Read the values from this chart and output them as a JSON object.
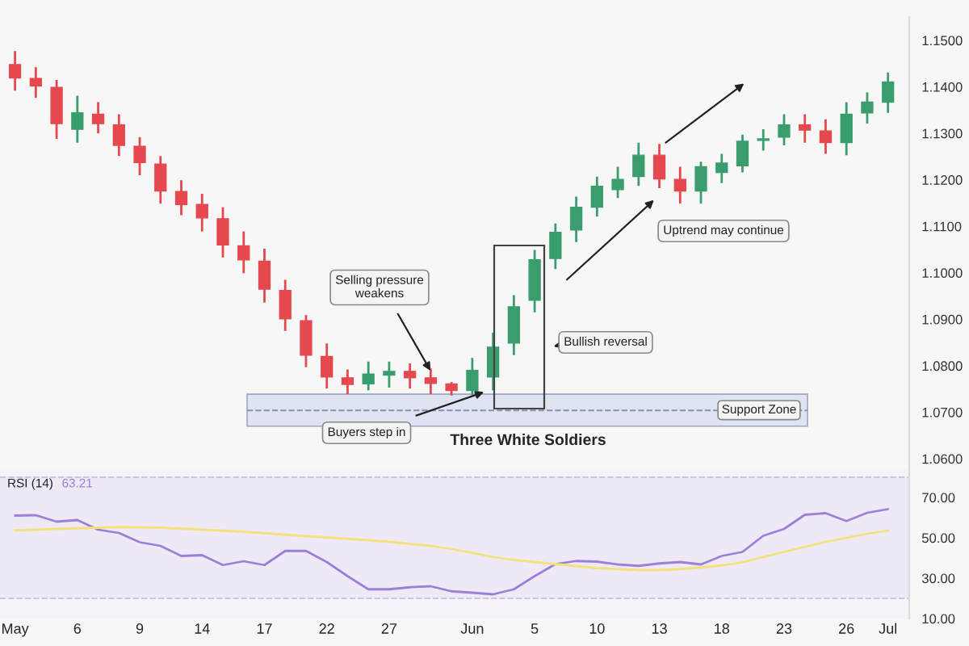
{
  "chart_data": [
    {
      "type": "candlestick",
      "categories": [
        null,
        null,
        null,
        null,
        null,
        null,
        null,
        null,
        null,
        null,
        null,
        null,
        null,
        null,
        null,
        null,
        null,
        null,
        null,
        null,
        null,
        null,
        null,
        null,
        null,
        null,
        null,
        null,
        null,
        null,
        null,
        null,
        null,
        null,
        null,
        null,
        null,
        null,
        null,
        null,
        null,
        null,
        null
      ],
      "ohlc": [
        [
          1.1448,
          1.1477,
          1.1392,
          1.1419
        ],
        [
          1.1418,
          1.1442,
          1.1376,
          1.1402
        ],
        [
          1.1399,
          1.1415,
          1.1288,
          1.1321
        ],
        [
          1.1309,
          1.1381,
          1.128,
          1.1344
        ],
        [
          1.1341,
          1.1367,
          1.13,
          1.1321
        ],
        [
          1.1318,
          1.1341,
          1.1251,
          1.1274
        ],
        [
          1.1272,
          1.1292,
          1.121,
          1.1237
        ],
        [
          1.1234,
          1.1251,
          1.1149,
          1.1176
        ],
        [
          1.1175,
          1.1199,
          1.1124,
          1.1147
        ],
        [
          1.1147,
          1.117,
          1.1089,
          1.1118
        ],
        [
          1.1116,
          1.1141,
          1.1033,
          1.106
        ],
        [
          1.1058,
          1.1089,
          1.0999,
          1.1028
        ],
        [
          1.1025,
          1.1052,
          1.0936,
          1.0965
        ],
        [
          1.0962,
          1.0985,
          1.0875,
          1.0901
        ],
        [
          1.0897,
          1.0909,
          1.0797,
          1.0823
        ],
        [
          1.082,
          1.0848,
          1.0751,
          1.0776
        ],
        [
          1.0774,
          1.0792,
          1.0739,
          1.076
        ],
        [
          1.0761,
          1.0809,
          1.0747,
          1.0782
        ],
        [
          1.078,
          1.0809,
          1.0753,
          1.0788
        ],
        [
          1.0788,
          1.0805,
          1.0751,
          1.0774
        ],
        [
          1.0774,
          1.0794,
          1.0739,
          1.0762
        ],
        [
          1.0761,
          1.0765,
          1.0736,
          1.0747
        ],
        [
          1.0747,
          1.0817,
          1.0736,
          1.079
        ],
        [
          1.0776,
          1.0871,
          1.0747,
          1.084
        ],
        [
          1.0849,
          1.0952,
          1.0823,
          1.0927
        ],
        [
          1.0941,
          1.1049,
          1.0915,
          1.1028
        ],
        [
          1.1031,
          1.1106,
          1.1008,
          1.1087
        ],
        [
          1.1092,
          1.1164,
          1.1066,
          1.1141
        ],
        [
          1.1141,
          1.1207,
          1.1121,
          1.1186
        ],
        [
          1.1179,
          1.1228,
          1.1161,
          1.1201
        ],
        [
          1.1207,
          1.128,
          1.1187,
          1.1253
        ],
        [
          1.1253,
          1.1277,
          1.1182,
          1.1202
        ],
        [
          1.1201,
          1.1228,
          1.1149,
          1.1176
        ],
        [
          1.1176,
          1.1239,
          1.1149,
          1.1228
        ],
        [
          1.1216,
          1.1256,
          1.1193,
          1.1236
        ],
        [
          1.123,
          1.1297,
          1.1216,
          1.1283
        ],
        [
          1.1285,
          1.1309,
          1.1263,
          1.1288
        ],
        [
          1.1292,
          1.1341,
          1.1274,
          1.1318
        ],
        [
          1.1318,
          1.1341,
          1.128,
          1.1307
        ],
        [
          1.1305,
          1.133,
          1.1256,
          1.128
        ],
        [
          1.128,
          1.1367,
          1.1253,
          1.1341
        ],
        [
          1.1344,
          1.1388,
          1.1321,
          1.1367
        ],
        [
          1.1367,
          1.1431,
          1.1344,
          1.141
        ]
      ],
      "colors": [
        "#e5484d",
        "#e5484d",
        "#e5484d",
        "#3a9d6e",
        "#e5484d",
        "#e5484d",
        "#e5484d",
        "#e5484d",
        "#e5484d",
        "#e5484d",
        "#e5484d",
        "#e5484d",
        "#e5484d",
        "#e5484d",
        "#e5484d",
        "#e5484d",
        "#e5484d",
        "#3a9d6e",
        "#3a9d6e",
        "#e5484d",
        "#e5484d",
        "#e5484d",
        "#3a9d6e",
        "#3a9d6e",
        "#3a9d6e",
        "#3a9d6e",
        "#3a9d6e",
        "#3a9d6e",
        "#3a9d6e",
        "#3a9d6e",
        "#3a9d6e",
        "#e5484d",
        "#e5484d",
        "#3a9d6e",
        "#3a9d6e",
        "#3a9d6e",
        "#3a9d6e",
        "#3a9d6e",
        "#e5484d",
        "#e5484d",
        "#3a9d6e",
        "#3a9d6e",
        "#3a9d6e"
      ],
      "ylim": [
        1.058,
        1.155
      ],
      "yticks": [
        {
          "value": 1.06,
          "label": "1.0600"
        },
        {
          "value": 1.07,
          "label": "1.0700"
        },
        {
          "value": 1.08,
          "label": "1.0800"
        },
        {
          "value": 1.09,
          "label": "1.0900"
        },
        {
          "value": 1.1,
          "label": "1.1000"
        },
        {
          "value": 1.11,
          "label": "1.1100"
        },
        {
          "value": 1.12,
          "label": "1.1200"
        },
        {
          "value": 1.13,
          "label": "1.1300"
        },
        {
          "value": 1.14,
          "label": "1.1400"
        },
        {
          "value": 1.15,
          "label": "1.1500"
        }
      ],
      "tick_labels": "y",
      "bands": [
        {
          "axis": "y",
          "from": 1.067,
          "to": 1.0739,
          "label": "Support Zone",
          "color": "#dfe3f2"
        }
      ],
      "ref_lines": [
        {
          "axis": "y",
          "value": 1.0704,
          "color": "#8a90b0",
          "line_style": "dashed"
        }
      ],
      "annotations": [
        "Selling pressure\nweakens",
        {
          "text": "Buyers step in",
          "y": 1.0745
        },
        "Bullish reversal",
        "Uptrend may continue",
        "Three White Soldiers"
      ]
    },
    {
      "type": "line",
      "categories": [
        "May",
        null,
        null,
        "6",
        null,
        null,
        "9",
        null,
        null,
        "14",
        null,
        null,
        "17",
        null,
        null,
        "22",
        null,
        null,
        "27",
        null,
        null,
        null,
        "Jun",
        null,
        null,
        "5",
        null,
        null,
        "10",
        null,
        null,
        "13",
        null,
        null,
        "18",
        null,
        null,
        "23",
        null,
        null,
        "26",
        null,
        "Jul"
      ],
      "series": [
        {
          "name": "RSI (14)",
          "color": "#9b80d8",
          "values": [
            61,
            61.2,
            58,
            58.8,
            54,
            52.4,
            47.8,
            46,
            41,
            41.4,
            36.5,
            38.4,
            36.5,
            43.5,
            43.5,
            38,
            31,
            24.5,
            24.5,
            25.5,
            26,
            23.5,
            22.8,
            22,
            24.5,
            31,
            37,
            38.5,
            38.2,
            36.8,
            36.1,
            37.3,
            38,
            36.8,
            41,
            43,
            51,
            54.4,
            61.4,
            62.2,
            58.3,
            62.4,
            64.2
          ]
        },
        {
          "color": "#f3e27c",
          "values": [
            53.7,
            54,
            54.4,
            54.7,
            55,
            55.3,
            55.2,
            55,
            54.5,
            54,
            53.5,
            53,
            52.3,
            51.5,
            50.8,
            50.2,
            49.5,
            48.8,
            48,
            47,
            46,
            44.5,
            42.5,
            40.5,
            39,
            38,
            37,
            36,
            35,
            34.5,
            34,
            34,
            34.5,
            35.3,
            36.3,
            37.8,
            40.5,
            43,
            45.5,
            48,
            50,
            52,
            53.6
          ]
        }
      ],
      "ylim": [
        10,
        84
      ],
      "yticks": [
        {
          "value": 10,
          "label": "10.00"
        },
        {
          "value": 30,
          "label": "30.00"
        },
        {
          "value": 50,
          "label": "50.00"
        },
        {
          "value": 70,
          "label": "70.00"
        }
      ],
      "bands": [
        {
          "axis": "y",
          "from": 20,
          "to": 80,
          "color": "#efe9f7"
        }
      ],
      "ref_lines": [
        {
          "axis": "y",
          "value": 80,
          "color": "#cfc6dd",
          "line_style": "dashed"
        },
        {
          "axis": "y",
          "value": 20,
          "color": "#cfc6dd",
          "line_style": "dashed"
        }
      ],
      "annotations": [
        "63.21"
      ]
    }
  ]
}
